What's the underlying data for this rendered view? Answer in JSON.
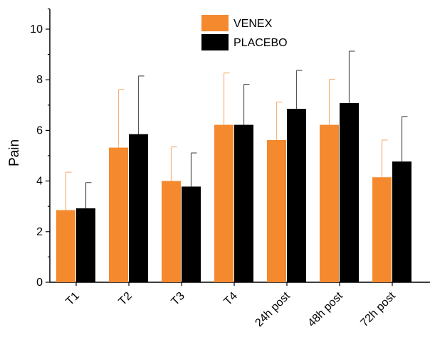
{
  "chart_data": {
    "type": "bar",
    "title": "",
    "xlabel": "",
    "ylabel": "Pain",
    "ylim": [
      0,
      10
    ],
    "yticks": [
      0,
      2,
      4,
      6,
      8,
      10
    ],
    "grid": false,
    "legend_position": "top-center",
    "categories": [
      "T1",
      "T2",
      "T3",
      "T4",
      "24h post",
      "48h post",
      "72h post"
    ],
    "series": [
      {
        "name": "VENEX",
        "color": "#F5892E",
        "values": [
          2.85,
          5.32,
          4.0,
          6.22,
          5.62,
          6.22,
          4.15
        ],
        "error": [
          1.5,
          2.3,
          1.35,
          2.05,
          1.5,
          1.8,
          1.47
        ]
      },
      {
        "name": "PLACEBO",
        "color": "#000000",
        "values": [
          2.92,
          5.85,
          3.78,
          6.22,
          6.85,
          7.08,
          4.77
        ],
        "error": [
          1.02,
          2.3,
          1.33,
          1.6,
          1.52,
          2.05,
          1.78
        ]
      }
    ]
  }
}
